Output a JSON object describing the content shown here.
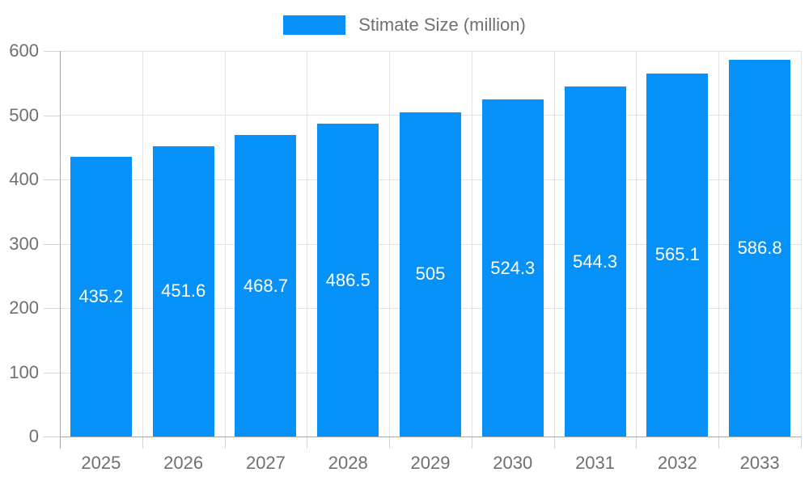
{
  "chart_data": {
    "type": "bar",
    "title": "",
    "legend": "Stimate Size (million)",
    "legend_position": "top",
    "categories": [
      "2025",
      "2026",
      "2027",
      "2028",
      "2029",
      "2030",
      "2031",
      "2032",
      "2033"
    ],
    "values": [
      435.2,
      451.6,
      468.7,
      486.5,
      505,
      524.3,
      544.3,
      565.1,
      586.8
    ],
    "value_labels": [
      "435.2",
      "451.6",
      "468.7",
      "486.5",
      "505",
      "524.3",
      "544.3",
      "565.1",
      "586.8"
    ],
    "xlabel": "",
    "ylabel": "",
    "ylim": [
      0,
      600
    ],
    "ytick_step": 100,
    "grid": true,
    "colors": {
      "bar": "#0591f8",
      "bar_label": "#ffffff",
      "axis": "#a9a9a9",
      "grid": "#e2e2e2",
      "tick": "#d4d4d4",
      "text": "#707070",
      "background": "#ffffff"
    }
  }
}
